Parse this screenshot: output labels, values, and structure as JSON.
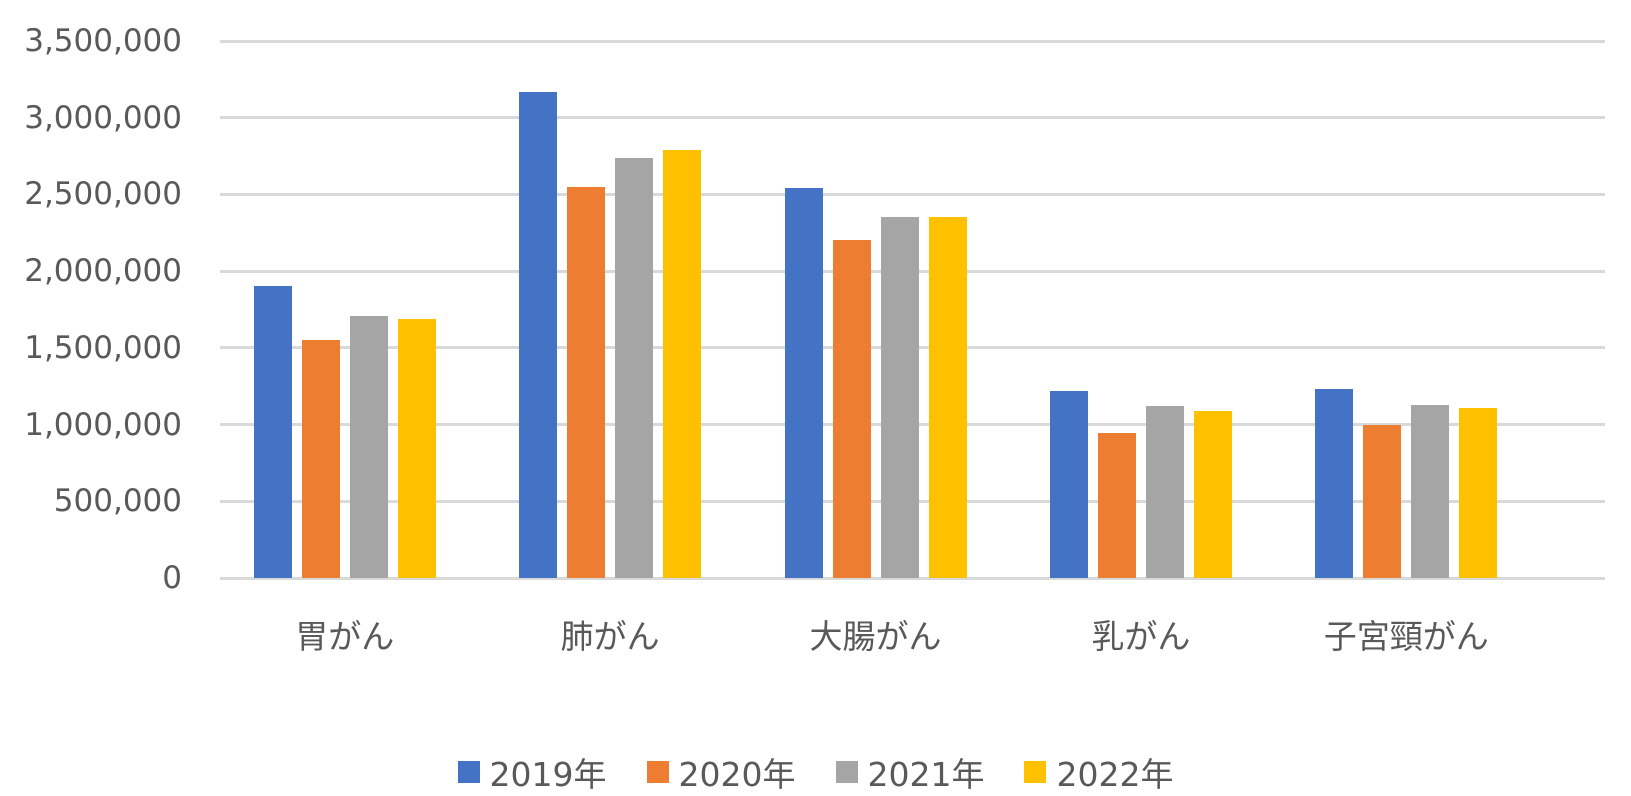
{
  "chart_data": {
    "type": "bar",
    "title": "",
    "xlabel": "",
    "ylabel": "",
    "ylim": [
      0,
      3500000
    ],
    "yticks": [
      0,
      500000,
      1000000,
      1500000,
      2000000,
      2500000,
      3000000,
      3500000
    ],
    "ytick_labels": [
      "0",
      "500,000",
      "1,000,000",
      "1,500,000",
      "2,000,000",
      "2,500,000",
      "3,000,000",
      "3,500,000"
    ],
    "grid": true,
    "legend_position": "bottom",
    "categories": [
      "胃がん",
      "肺がん",
      "大腸がん",
      "乳がん",
      "子宮頸がん"
    ],
    "series": [
      {
        "name": "2019年",
        "color": "#4472C4",
        "values": [
          1900000,
          3170000,
          2540000,
          1220000,
          1230000
        ]
      },
      {
        "name": "2020年",
        "color": "#ED7D31",
        "values": [
          1550000,
          2550000,
          2200000,
          945000,
          1000000
        ]
      },
      {
        "name": "2021年",
        "color": "#A5A5A5",
        "values": [
          1705000,
          2740000,
          2350000,
          1120000,
          1130000
        ]
      },
      {
        "name": "2022年",
        "color": "#FFC000",
        "values": [
          1690000,
          2790000,
          2350000,
          1087000,
          1107000
        ]
      }
    ]
  },
  "legend": {
    "items": [
      {
        "label": "2019年",
        "color": "#4472C4"
      },
      {
        "label": "2020年",
        "color": "#ED7D31"
      },
      {
        "label": "2021年",
        "color": "#A5A5A5"
      },
      {
        "label": "2022年",
        "color": "#FFC000"
      }
    ]
  }
}
